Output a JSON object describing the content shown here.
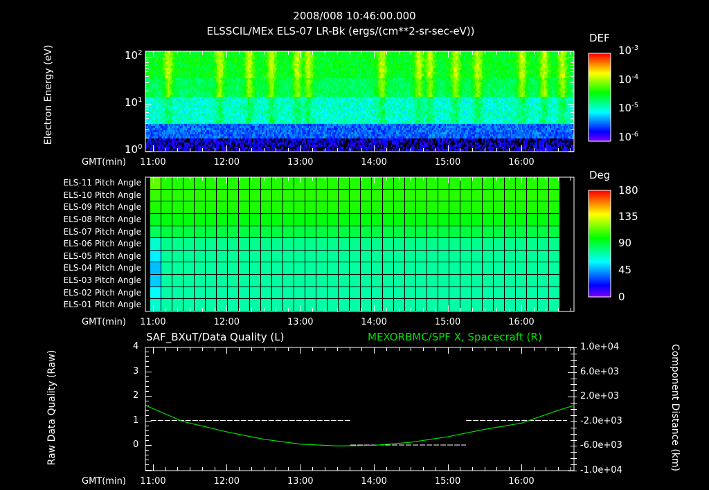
{
  "header": {
    "datetime": "2008/008 10:46:00.000",
    "title": "ELSSCIL/MEx ELS-07 LR-Bk  (ergs/(cm**2-sr-sec-eV))"
  },
  "colors": {
    "background": "#000000",
    "axis": "#ffffff",
    "spacecraft_line": "#00e000",
    "quality_line": "#ffffff"
  },
  "chart_data": [
    {
      "type": "heatmap",
      "name": "electron-spectrogram",
      "ylabel": "Electron Energy (eV)",
      "yscale": "log",
      "ylim": [
        1,
        130
      ],
      "yticks": [
        {
          "v": 1,
          "label": "10",
          "exp": "0"
        },
        {
          "v": 10,
          "label": "10",
          "exp": "1"
        },
        {
          "v": 100,
          "label": "10",
          "exp": "2"
        }
      ],
      "xlabel": "GMT(min)",
      "xlim_hours": [
        10.9,
        16.72
      ],
      "xticks": [
        "11:00",
        "12:00",
        "13:00",
        "14:00",
        "15:00",
        "16:00"
      ],
      "colorbar": {
        "title": "DEF",
        "scale": "log",
        "range": [
          1e-06,
          0.001
        ],
        "ticks": [
          {
            "label": "10",
            "exp": "-3"
          },
          {
            "label": "10",
            "exp": "-4"
          },
          {
            "label": "10",
            "exp": "-5"
          },
          {
            "label": "10",
            "exp": "-6"
          }
        ]
      },
      "green_burst_hours": [
        11.2,
        11.9,
        12.3,
        12.6,
        12.95,
        13.1,
        14.1,
        14.6,
        14.75,
        15.1,
        15.4,
        16.0,
        16.3,
        16.55
      ]
    },
    {
      "type": "heatmap",
      "name": "pitch-angle",
      "xlabel": "GMT(min)",
      "xticks": [
        "11:00",
        "12:00",
        "13:00",
        "14:00",
        "15:00",
        "16:00"
      ],
      "rows": [
        "ELS-11 Pitch Angle",
        "ELS-10 Pitch Angle",
        "ELS-09 Pitch Angle",
        "ELS-08 Pitch Angle",
        "ELS-07 Pitch Angle",
        "ELS-06 Pitch Angle",
        "ELS-05 Pitch Angle",
        "ELS-04 Pitch Angle",
        "ELS-03 Pitch Angle",
        "ELS-02 Pitch Angle",
        "ELS-01 Pitch Angle"
      ],
      "values_deg": [
        105,
        106,
        104,
        98,
        90,
        78,
        76,
        75,
        75,
        74,
        74
      ],
      "first_column_deg": [
        115,
        108,
        104,
        95,
        86,
        68,
        58,
        50,
        52,
        60,
        68
      ],
      "colorbar": {
        "title": "Deg",
        "range": [
          0,
          180
        ],
        "ticks": [
          "180",
          "135",
          "90",
          "45",
          "0"
        ]
      }
    },
    {
      "type": "line",
      "name": "data-quality-and-position",
      "title_left": "SAF_BXuT/Data Quality (L)",
      "title_right": "MEXORBMC/SPF X, Spacecraft (R)",
      "ylabel_left": "Raw Data Quality (Raw)",
      "ylabel_right": "Component Distance (km)",
      "xlabel": "GMT(min)",
      "ylim_left": [
        -1.05,
        4
      ],
      "yticks_left": [
        "0",
        "1",
        "2",
        "3",
        "4"
      ],
      "ylim_right": [
        -10000,
        10000
      ],
      "yticks_right": [
        "1.0e+04",
        "6.0e+03",
        "2.0e+03",
        "-2.0e+03",
        "-6.0e+03",
        "-1.0e+04"
      ],
      "xticks": [
        "11:00",
        "12:00",
        "13:00",
        "14:00",
        "15:00",
        "16:00"
      ],
      "quality": [
        {
          "x": [
            10.97,
            13.68
          ],
          "y": 1
        },
        {
          "x": [
            13.68,
            15.25
          ],
          "y": 0
        },
        {
          "x": [
            15.25,
            16.62
          ],
          "y": 1
        }
      ],
      "spacecraft_x": {
        "hours": [
          10.9,
          11.4,
          12.0,
          12.5,
          13.0,
          13.5,
          14.0,
          14.5,
          15.0,
          15.5,
          16.0,
          16.5,
          16.72
        ],
        "km": [
          600,
          -2000,
          -3700,
          -4900,
          -5700,
          -6000,
          -5900,
          -5400,
          -4500,
          -3300,
          -2300,
          -200,
          600
        ]
      }
    }
  ]
}
